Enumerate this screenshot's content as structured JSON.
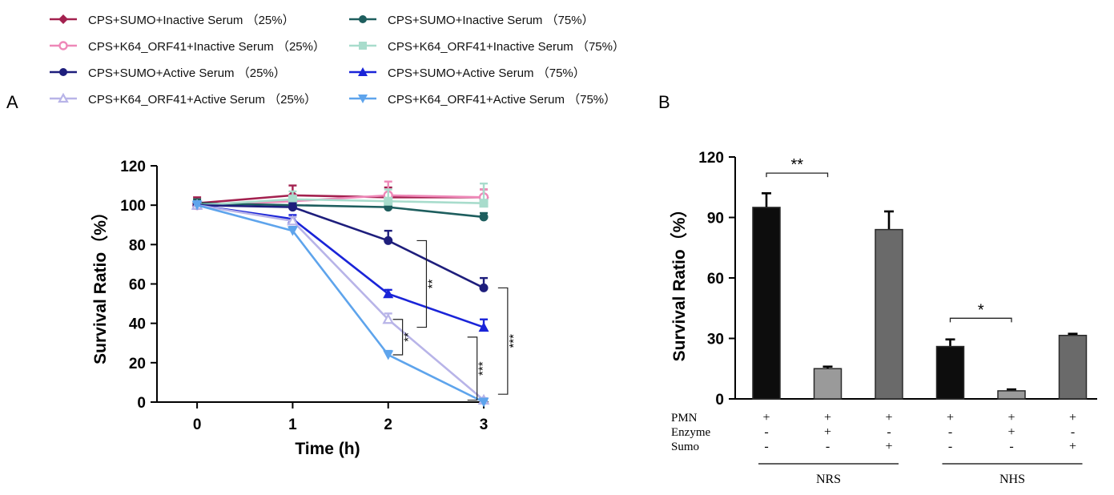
{
  "panel_labels": {
    "a": "A",
    "b": "B"
  },
  "legend": [
    {
      "label": "CPS+SUMO+Inactive Serum",
      "pct": "（25%）",
      "color": "#a3214f",
      "marker": "diamond"
    },
    {
      "label": "CPS+K64_ORF41+Inactive Serum",
      "pct": "（25%）",
      "color": "#ee88b8",
      "marker": "circle-open"
    },
    {
      "label": "CPS+SUMO+Active Serum",
      "pct": "（25%）",
      "color": "#1e1e7c",
      "marker": "circle"
    },
    {
      "label": "CPS+K64_ORF41+Active Serum",
      "pct": "（25%）",
      "color": "#b8b4e8",
      "marker": "triangle-open"
    },
    {
      "label": "CPS+SUMO+Inactive Serum",
      "pct": "（75%）",
      "color": "#1e5e5e",
      "marker": "circle"
    },
    {
      "label": "CPS+K64_ORF41+Inactive Serum",
      "pct": "（75%）",
      "color": "#a8dccc",
      "marker": "square"
    },
    {
      "label": "CPS+SUMO+Active Serum",
      "pct": "（75%）",
      "color": "#1a24d8",
      "marker": "triangle"
    },
    {
      "label": "CPS+K64_ORF41+Active Serum",
      "pct": "（75%）",
      "color": "#5ea4ec",
      "marker": "triangle-down"
    }
  ],
  "chart_data": [
    {
      "type": "line",
      "panel": "A",
      "xlabel": "Time (h)",
      "ylabel": "Survival Ratio（%）",
      "x": [
        0,
        1,
        2,
        3
      ],
      "xticks": [
        "0",
        "1",
        "2",
        "3"
      ],
      "yticks": [
        "0",
        "20",
        "40",
        "60",
        "80",
        "100",
        "120"
      ],
      "xlim": [
        -0.42,
        3.05
      ],
      "ylim": [
        0,
        120
      ],
      "series": [
        {
          "name": "CPS+SUMO+Inactive Serum（25%）",
          "values": [
            101,
            105,
            104,
            104
          ],
          "errors": [
            3,
            5,
            5,
            4
          ]
        },
        {
          "name": "CPS+K64_ORF41+Inactive Serum（25%）",
          "values": [
            100,
            102,
            105,
            104
          ],
          "errors": [
            2,
            3,
            7,
            4
          ]
        },
        {
          "name": "CPS+SUMO+Active Serum（25%）",
          "values": [
            100,
            99,
            82,
            58
          ],
          "errors": [
            2,
            2,
            5,
            5
          ]
        },
        {
          "name": "CPS+K64_ORF41+Active Serum（25%）",
          "values": [
            100,
            92,
            42,
            1
          ],
          "errors": [
            2,
            2,
            3,
            1
          ]
        },
        {
          "name": "CPS+SUMO+Inactive Serum（75%）",
          "values": [
            101,
            100,
            99,
            94
          ],
          "errors": [
            2,
            2,
            2,
            2
          ]
        },
        {
          "name": "CPS+K64_ORF41+Inactive Serum（75%）",
          "values": [
            100,
            103,
            102,
            101
          ],
          "errors": [
            2,
            4,
            6,
            10
          ]
        },
        {
          "name": "CPS+SUMO+Active Serum（75%）",
          "values": [
            100,
            93,
            55,
            38
          ],
          "errors": [
            2,
            2,
            2,
            4
          ]
        },
        {
          "name": "CPS+K64_ORF41+Active Serum（75%）",
          "values": [
            100,
            87,
            24,
            0
          ],
          "errors": [
            2,
            2,
            2,
            1
          ]
        }
      ],
      "annotations": [
        {
          "text": "**",
          "x": 2.4,
          "y_from": 82,
          "y_to": 38
        },
        {
          "text": "**",
          "x": 2.15,
          "y_from": 42,
          "y_to": 24
        },
        {
          "text": "***",
          "x": 2.93,
          "y_from": 33,
          "y_to": 1
        },
        {
          "text": "***",
          "x": 3.25,
          "y_from": 58,
          "y_to": 4
        }
      ]
    },
    {
      "type": "bar",
      "panel": "B",
      "ylabel": "Survival Ratio（%）",
      "yticks": [
        "0",
        "30",
        "60",
        "90",
        "120"
      ],
      "ylim": [
        0,
        120
      ],
      "values": [
        95,
        15,
        84,
        26,
        4,
        31.5
      ],
      "errors": [
        7,
        1,
        9,
        3.5,
        0.7,
        0.8
      ],
      "bar_colors": [
        "#0d0d0d",
        "#9a9a9a",
        "#6a6a6a",
        "#0d0d0d",
        "#9a9a9a",
        "#6a6a6a"
      ],
      "conditions": [
        {
          "label": "PMN",
          "signs": [
            "+",
            "+",
            "+",
            "+",
            "+",
            "+"
          ]
        },
        {
          "label": "Enzyme",
          "signs": [
            "-",
            "+",
            "-",
            "-",
            "+",
            "-"
          ]
        },
        {
          "label": "Sumo",
          "signs": [
            "-",
            "-",
            "+",
            "-",
            "-",
            "+"
          ]
        }
      ],
      "groups": [
        {
          "label": "NRS",
          "from": 0,
          "to": 2
        },
        {
          "label": "NHS",
          "from": 3,
          "to": 5
        }
      ],
      "annotations": [
        {
          "text": "**",
          "from": 0,
          "to": 1,
          "y": 112
        },
        {
          "text": "*",
          "from": 3,
          "to": 4,
          "y": 40
        }
      ]
    }
  ]
}
